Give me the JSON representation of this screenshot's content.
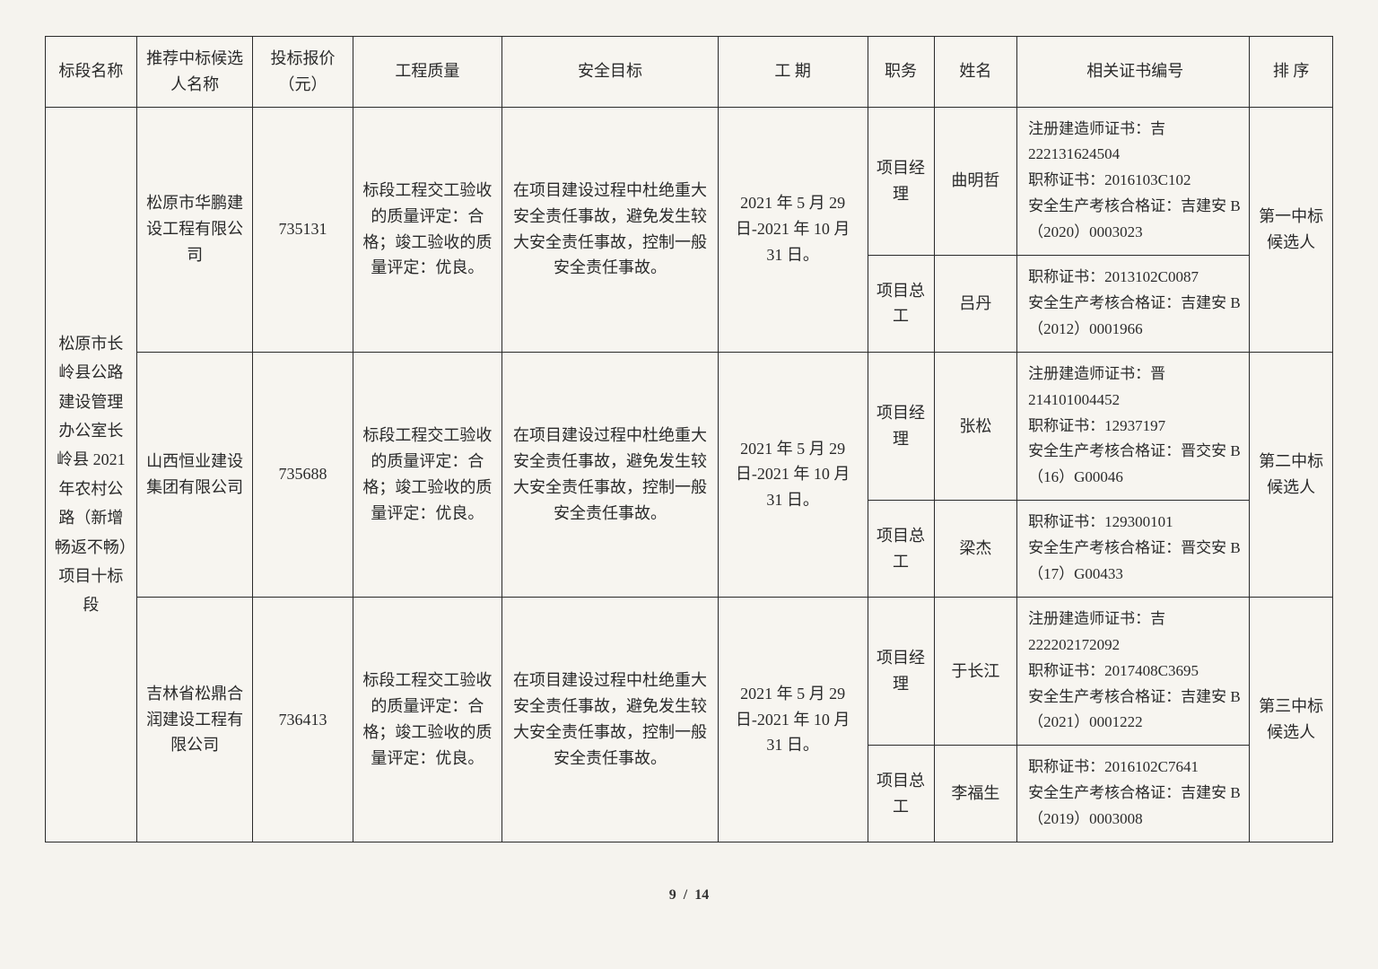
{
  "headers": {
    "section_name": "标段名称",
    "bidder_name": "推荐中标候选人名称",
    "bid_price": "投标报价（元）",
    "quality": "工程质量",
    "safety": "安全目标",
    "duration": "工 期",
    "role": "职务",
    "name": "姓名",
    "cert": "相关证书编号",
    "rank": "排 序"
  },
  "section_name": "松原市长岭县公路建设管理办公室长岭县 2021 年农村公路（新增畅返不畅）项目十标段",
  "bidders": [
    {
      "name": "松原市华鹏建设工程有限公司",
      "price": "735131",
      "quality": "标段工程交工验收的质量评定：合格；竣工验收的质量评定：优良。",
      "safety": "在项目建设过程中杜绝重大安全责任事故，避免发生较大安全责任事故，控制一般安全责任事故。",
      "duration": "2021 年 5 月 29 日-2021 年 10 月 31 日。",
      "rank": "第一中标候选人",
      "staff": [
        {
          "role": "项目经理",
          "name": "曲明哲",
          "cert": "注册建造师证书：吉 222131624504\n职称证书：2016103C102\n安全生产考核合格证：吉建安 B（2020）0003023"
        },
        {
          "role": "项目总工",
          "name": "吕丹",
          "cert": "职称证书：2013102C0087\n安全生产考核合格证：吉建安 B（2012）0001966"
        }
      ]
    },
    {
      "name": "山西恒业建设集团有限公司",
      "price": "735688",
      "quality": "标段工程交工验收的质量评定：合格；竣工验收的质量评定：优良。",
      "safety": "在项目建设过程中杜绝重大安全责任事故，避免发生较大安全责任事故，控制一般安全责任事故。",
      "duration": "2021 年 5 月 29 日-2021 年 10 月 31 日。",
      "rank": "第二中标候选人",
      "staff": [
        {
          "role": "项目经理",
          "name": "张松",
          "cert": "注册建造师证书：晋 214101004452\n职称证书：12937197\n安全生产考核合格证：晋交安 B（16）G00046"
        },
        {
          "role": "项目总工",
          "name": "梁杰",
          "cert": "职称证书：129300101\n安全生产考核合格证：晋交安 B（17）G00433"
        }
      ]
    },
    {
      "name": "吉林省松鼎合润建设工程有限公司",
      "price": "736413",
      "quality": "标段工程交工验收的质量评定：合格；竣工验收的质量评定：优良。",
      "safety": "在项目建设过程中杜绝重大安全责任事故，避免发生较大安全责任事故，控制一般安全责任事故。",
      "duration": "2021 年 5 月 29 日-2021 年 10 月 31 日。",
      "rank": "第三中标候选人",
      "staff": [
        {
          "role": "项目经理",
          "name": "于长江",
          "cert": "注册建造师证书：吉 222202172092\n职称证书：2017408C3695\n安全生产考核合格证：吉建安 B（2021）0001222"
        },
        {
          "role": "项目总工",
          "name": "李福生",
          "cert": "职称证书：2016102C7641\n安全生产考核合格证：吉建安 B（2019）0003008"
        }
      ]
    }
  ],
  "footer": {
    "page": "9",
    "total": "14"
  }
}
